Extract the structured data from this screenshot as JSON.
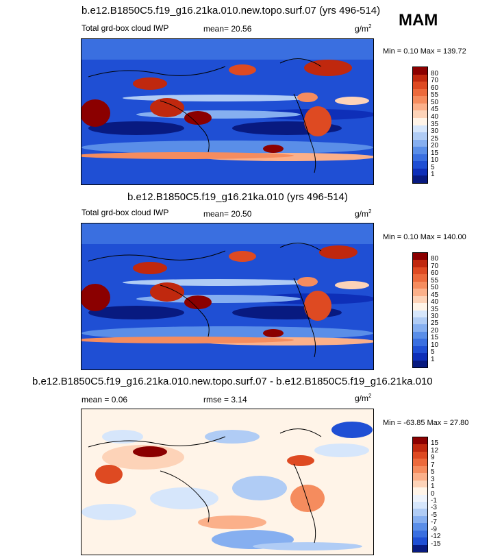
{
  "season": "MAM",
  "units_base": "g/m",
  "units_exp": "2",
  "panels": [
    {
      "title": "b.e12.B1850C5.f19_g16.21ka.010.new.topo.surf.07 (yrs 496-514)",
      "left_label": "Total grd-box cloud IWP",
      "stat_label": "mean=  20.56",
      "minmax": "Min =   0.10 Max = 139.72",
      "kind": "abs"
    },
    {
      "title": "b.e12.B1850C5.f19_g16.21ka.010 (yrs 496-514)",
      "left_label": "Total grd-box cloud IWP",
      "stat_label": "mean=  20.50",
      "minmax": "Min =   0.10 Max = 140.00",
      "kind": "abs"
    },
    {
      "title": "b.e12.B1850C5.f19_g16.21ka.010.new.topo.surf.07 - b.e12.B1850C5.f19_g16.21ka.010",
      "left_label": "mean =   0.06",
      "stat_label": "rmse =   3.14",
      "minmax": "Min = -63.85 Max =  27.80",
      "kind": "diff"
    }
  ],
  "abs_colorbar": {
    "labels": [
      "80",
      "70",
      "60",
      "55",
      "50",
      "45",
      "40",
      "35",
      "30",
      "25",
      "20",
      "15",
      "10",
      "5",
      "1"
    ],
    "colors": [
      "#8b0000",
      "#c0280e",
      "#de4a22",
      "#ec6a3c",
      "#f58c5e",
      "#fbb08a",
      "#fdd3b8",
      "#fff4e8",
      "#d6e6fb",
      "#b0ccf5",
      "#86aff0",
      "#5a8ee8",
      "#3a6fe0",
      "#1f4fd4",
      "#0e2fb8",
      "#081a80"
    ]
  },
  "diff_colorbar": {
    "labels": [
      "15",
      "12",
      "9",
      "7",
      "5",
      "3",
      "1",
      "0",
      "-1",
      "-3",
      "-5",
      "-7",
      "-9",
      "-12",
      "-15"
    ],
    "colors": [
      "#8b0000",
      "#c0280e",
      "#de4a22",
      "#ec6a3c",
      "#f58c5e",
      "#fbb08a",
      "#fdd3b8",
      "#fff4e8",
      "#eef3fb",
      "#d6e6fb",
      "#b0ccf5",
      "#86aff0",
      "#5a8ee8",
      "#3a6fe0",
      "#1f4fd4",
      "#081a80"
    ]
  }
}
